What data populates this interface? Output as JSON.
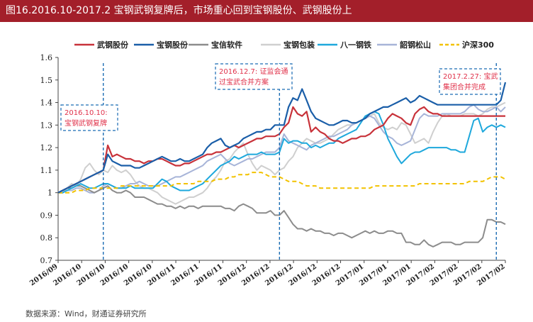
{
  "header": {
    "title": "图16.2016.10-2017.2 宝钢武钢复牌后，市场重心回到宝钢股份、武钢股份上"
  },
  "footer": {
    "source": "数据来源：Wind，财通证券研究所"
  },
  "colors": {
    "title_bg": "#a31f2a",
    "annotation": "#e0314a",
    "annotation_box": "#1b6cb3"
  },
  "chart_data": {
    "type": "line",
    "title": "",
    "xlabel": "",
    "ylabel": "",
    "ylim": [
      0.7,
      1.6
    ],
    "yticks": [
      "0.7",
      "0.8",
      "0.9",
      "1",
      "1.1",
      "1.2",
      "1.3",
      "1.4",
      "1.5",
      "1.6"
    ],
    "xtick_labels": [
      "2016/09",
      "2016/10",
      "2016/10",
      "2016/10",
      "2016/10",
      "2016/11",
      "2016/11",
      "2016/11",
      "2016/12",
      "2016/12",
      "2016/12",
      "2016/12",
      "2016/12",
      "2017/01",
      "2017/01",
      "2017/01",
      "2017/02",
      "2017/02",
      "2017/02",
      "2017/02"
    ],
    "legend_position": "top",
    "n_points": 100,
    "series": [
      {
        "name": "武钢股份",
        "color": "#c8323a",
        "dash": false,
        "values": [
          1.0,
          1.01,
          1.02,
          1.03,
          1.04,
          1.05,
          1.06,
          1.07,
          1.08,
          1.09,
          1.1,
          1.21,
          1.16,
          1.17,
          1.16,
          1.15,
          1.15,
          1.14,
          1.14,
          1.13,
          1.14,
          1.14,
          1.15,
          1.15,
          1.14,
          1.13,
          1.12,
          1.12,
          1.13,
          1.13,
          1.14,
          1.15,
          1.16,
          1.17,
          1.17,
          1.18,
          1.18,
          1.19,
          1.2,
          1.21,
          1.2,
          1.21,
          1.22,
          1.23,
          1.24,
          1.24,
          1.25,
          1.25,
          1.25,
          1.26,
          1.29,
          1.31,
          1.38,
          1.35,
          1.34,
          1.36,
          1.27,
          1.29,
          1.27,
          1.26,
          1.24,
          1.23,
          1.23,
          1.22,
          1.23,
          1.24,
          1.24,
          1.25,
          1.25,
          1.26,
          1.28,
          1.29,
          1.3,
          1.33,
          1.35,
          1.34,
          1.33,
          1.31,
          1.3,
          1.35,
          1.37,
          1.38,
          1.36,
          1.35,
          1.35,
          1.34,
          1.34,
          1.34,
          1.34,
          1.34,
          1.34,
          1.34,
          1.34,
          1.34,
          1.34,
          1.34,
          1.34,
          1.34,
          1.34,
          1.34
        ]
      },
      {
        "name": "宝钢股份",
        "color": "#1a5ea8",
        "dash": false,
        "values": [
          1.0,
          1.01,
          1.02,
          1.03,
          1.04,
          1.05,
          1.06,
          1.07,
          1.08,
          1.09,
          1.1,
          1.17,
          1.14,
          1.13,
          1.12,
          1.12,
          1.12,
          1.11,
          1.11,
          1.12,
          1.13,
          1.14,
          1.15,
          1.16,
          1.15,
          1.14,
          1.14,
          1.15,
          1.14,
          1.14,
          1.15,
          1.16,
          1.17,
          1.2,
          1.22,
          1.23,
          1.24,
          1.21,
          1.2,
          1.21,
          1.22,
          1.24,
          1.25,
          1.26,
          1.27,
          1.27,
          1.28,
          1.28,
          1.3,
          1.3,
          1.3,
          1.38,
          1.42,
          1.41,
          1.46,
          1.41,
          1.36,
          1.33,
          1.32,
          1.31,
          1.3,
          1.3,
          1.31,
          1.32,
          1.32,
          1.31,
          1.31,
          1.32,
          1.33,
          1.35,
          1.36,
          1.37,
          1.38,
          1.38,
          1.39,
          1.4,
          1.41,
          1.42,
          1.4,
          1.41,
          1.43,
          1.42,
          1.41,
          1.4,
          1.39,
          1.39,
          1.39,
          1.39,
          1.39,
          1.39,
          1.39,
          1.39,
          1.39,
          1.39,
          1.39,
          1.39,
          1.39,
          1.39,
          1.41,
          1.49
        ]
      },
      {
        "name": "宝信软件",
        "color": "#8c8c8c",
        "dash": false,
        "values": [
          1.0,
          1.01,
          1.02,
          1.02,
          1.03,
          1.03,
          1.02,
          1.01,
          1.0,
          1.01,
          1.02,
          1.03,
          1.01,
          1.0,
          1.0,
          1.01,
          1.0,
          0.98,
          0.98,
          0.98,
          0.97,
          0.96,
          0.95,
          0.95,
          0.94,
          0.94,
          0.93,
          0.94,
          0.93,
          0.94,
          0.94,
          0.93,
          0.94,
          0.94,
          0.94,
          0.94,
          0.94,
          0.93,
          0.93,
          0.92,
          0.94,
          0.95,
          0.94,
          0.93,
          0.91,
          0.91,
          0.91,
          0.92,
          0.9,
          0.9,
          0.92,
          0.89,
          0.86,
          0.84,
          0.84,
          0.83,
          0.84,
          0.83,
          0.83,
          0.82,
          0.82,
          0.81,
          0.82,
          0.82,
          0.81,
          0.8,
          0.81,
          0.82,
          0.83,
          0.82,
          0.83,
          0.82,
          0.82,
          0.83,
          0.83,
          0.82,
          0.82,
          0.78,
          0.78,
          0.77,
          0.77,
          0.79,
          0.77,
          0.76,
          0.77,
          0.78,
          0.78,
          0.78,
          0.77,
          0.77,
          0.78,
          0.78,
          0.78,
          0.78,
          0.8,
          0.88,
          0.88,
          0.87,
          0.87,
          0.86
        ]
      },
      {
        "name": "宝钢包装",
        "color": "#cfcfcf",
        "dash": false,
        "values": [
          1.0,
          1.0,
          1.02,
          1.04,
          1.03,
          1.06,
          1.11,
          1.13,
          1.1,
          1.08,
          1.1,
          1.09,
          1.12,
          1.1,
          1.09,
          1.1,
          1.08,
          1.05,
          1.03,
          1.02,
          1.02,
          1.01,
          1.0,
          0.98,
          0.97,
          0.96,
          0.95,
          0.96,
          0.97,
          0.98,
          0.98,
          0.99,
          1.0,
          1.02,
          1.05,
          1.07,
          1.1,
          1.14,
          1.15,
          1.18,
          1.2,
          1.22,
          1.17,
          1.13,
          1.1,
          1.12,
          1.11,
          1.1,
          1.08,
          1.1,
          1.11,
          1.14,
          1.16,
          1.2,
          1.22,
          1.24,
          1.23,
          1.22,
          1.22,
          1.23,
          1.24,
          1.26,
          1.28,
          1.29,
          1.3,
          1.3,
          1.31,
          1.32,
          1.33,
          1.34,
          1.35,
          1.31,
          1.29,
          1.28,
          1.29,
          1.28,
          1.31,
          1.3,
          1.26,
          1.22,
          1.23,
          1.24,
          1.22,
          1.27,
          1.31,
          1.34,
          1.35,
          1.34,
          1.34,
          1.34,
          1.35,
          1.35,
          1.35,
          1.34,
          1.35,
          1.37,
          1.38,
          1.38,
          1.39,
          1.4
        ]
      },
      {
        "name": "八一钢铁",
        "color": "#1ea8dc",
        "dash": false,
        "values": [
          1.0,
          1.0,
          1.01,
          1.02,
          1.03,
          1.04,
          1.03,
          1.02,
          1.02,
          1.03,
          1.04,
          1.04,
          1.03,
          1.02,
          1.02,
          1.02,
          1.03,
          1.02,
          1.02,
          1.02,
          1.02,
          1.02,
          1.04,
          1.06,
          1.05,
          1.03,
          1.02,
          1.01,
          1.01,
          1.01,
          1.02,
          1.03,
          1.04,
          1.06,
          1.08,
          1.1,
          1.12,
          1.13,
          1.14,
          1.16,
          1.15,
          1.16,
          1.17,
          1.17,
          1.17,
          1.18,
          1.17,
          1.17,
          1.17,
          1.18,
          1.24,
          1.22,
          1.23,
          1.23,
          1.22,
          1.22,
          1.2,
          1.21,
          1.2,
          1.21,
          1.22,
          1.22,
          1.24,
          1.25,
          1.26,
          1.27,
          1.28,
          1.31,
          1.34,
          1.35,
          1.36,
          1.35,
          1.3,
          1.24,
          1.2,
          1.16,
          1.13,
          1.15,
          1.17,
          1.18,
          1.18,
          1.19,
          1.2,
          1.2,
          1.2,
          1.2,
          1.2,
          1.19,
          1.19,
          1.18,
          1.18,
          1.25,
          1.32,
          1.33,
          1.27,
          1.29,
          1.3,
          1.29,
          1.3,
          1.29
        ]
      },
      {
        "name": "韶钢松山",
        "color": "#a7b4d8",
        "dash": false,
        "values": [
          1.0,
          1.0,
          1.01,
          1.01,
          1.02,
          1.02,
          1.01,
          1.0,
          1.0,
          1.01,
          1.03,
          1.04,
          1.03,
          1.02,
          1.02,
          1.03,
          1.04,
          1.04,
          1.05,
          1.04,
          1.03,
          1.03,
          1.03,
          1.04,
          1.05,
          1.06,
          1.07,
          1.07,
          1.08,
          1.09,
          1.1,
          1.11,
          1.12,
          1.14,
          1.15,
          1.16,
          1.17,
          1.15,
          1.13,
          1.12,
          1.13,
          1.14,
          1.15,
          1.15,
          1.16,
          1.17,
          1.18,
          1.18,
          1.18,
          1.2,
          1.26,
          1.23,
          1.22,
          1.21,
          1.2,
          1.19,
          1.21,
          1.22,
          1.23,
          1.24,
          1.25,
          1.25,
          1.26,
          1.27,
          1.28,
          1.3,
          1.31,
          1.32,
          1.33,
          1.34,
          1.33,
          1.3,
          1.27,
          1.25,
          1.24,
          1.22,
          1.21,
          1.22,
          1.23,
          1.28,
          1.33,
          1.35,
          1.34,
          1.34,
          1.34,
          1.35,
          1.35,
          1.35,
          1.35,
          1.35,
          1.36,
          1.38,
          1.39,
          1.37,
          1.36,
          1.36,
          1.37,
          1.38,
          1.36,
          1.38
        ]
      },
      {
        "name": "沪深300",
        "color": "#f2c200",
        "dash": true,
        "values": [
          1.0,
          1.0,
          1.0,
          1.0,
          1.01,
          1.01,
          1.01,
          1.02,
          1.02,
          1.02,
          1.02,
          1.02,
          1.02,
          1.02,
          1.03,
          1.03,
          1.03,
          1.03,
          1.03,
          1.03,
          1.03,
          1.03,
          1.03,
          1.03,
          1.03,
          1.03,
          1.04,
          1.04,
          1.04,
          1.04,
          1.04,
          1.05,
          1.05,
          1.05,
          1.05,
          1.06,
          1.06,
          1.06,
          1.07,
          1.07,
          1.08,
          1.08,
          1.08,
          1.09,
          1.09,
          1.09,
          1.08,
          1.07,
          1.07,
          1.07,
          1.06,
          1.05,
          1.05,
          1.05,
          1.04,
          1.03,
          1.03,
          1.03,
          1.02,
          1.02,
          1.02,
          1.02,
          1.02,
          1.02,
          1.02,
          1.02,
          1.02,
          1.02,
          1.02,
          1.02,
          1.03,
          1.03,
          1.03,
          1.03,
          1.03,
          1.03,
          1.03,
          1.03,
          1.03,
          1.03,
          1.04,
          1.04,
          1.04,
          1.04,
          1.04,
          1.04,
          1.04,
          1.04,
          1.04,
          1.04,
          1.04,
          1.05,
          1.05,
          1.05,
          1.05,
          1.06,
          1.07,
          1.07,
          1.07,
          1.06
        ]
      }
    ],
    "annotations": [
      {
        "index": 10,
        "lines": [
          "2016.10.10:",
          "宝钢武钢复牌"
        ]
      },
      {
        "index": 49,
        "lines": [
          "2016.12.7: 证监会通",
          "过宝武合并方案"
        ]
      },
      {
        "index": 97,
        "lines": [
          "2017.2.27: 宝武",
          "集团合并完成"
        ]
      }
    ]
  }
}
